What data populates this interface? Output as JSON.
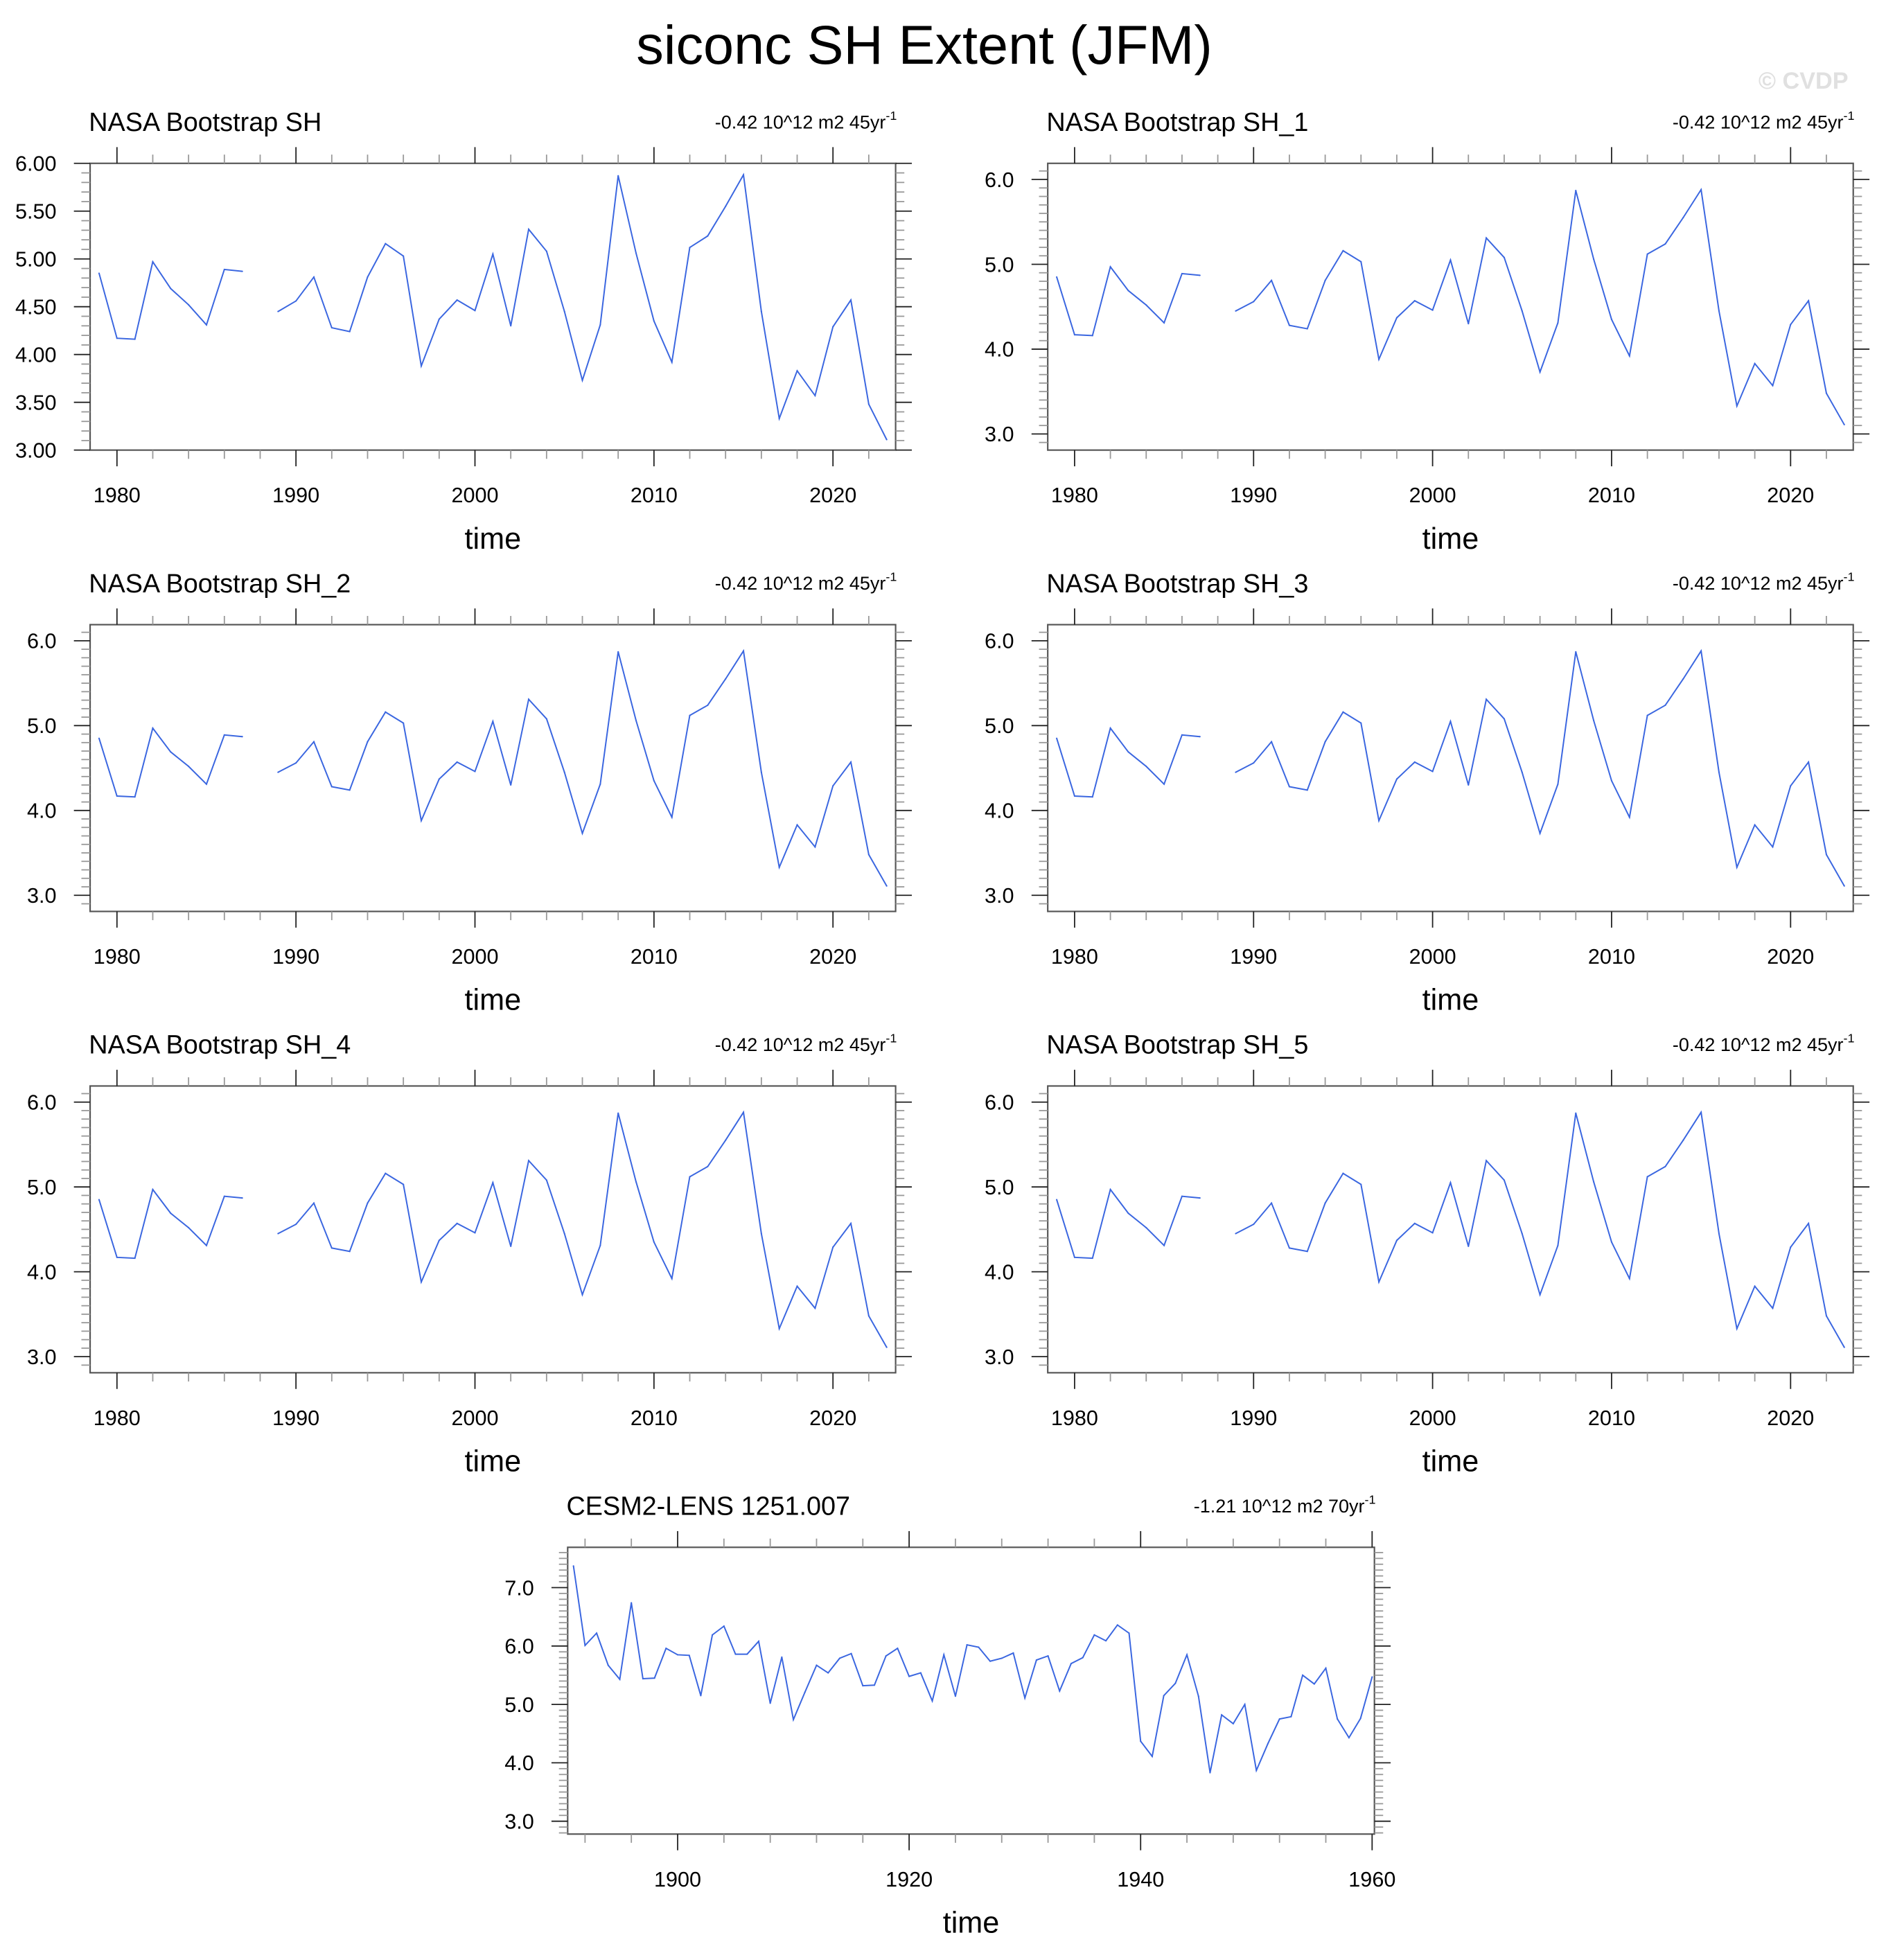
{
  "title": "siconc SH Extent (JFM)",
  "watermark": "© CVDP",
  "line_color": "#3a66e0",
  "chart_data": [
    {
      "type": "line",
      "title": "NASA Bootstrap SH",
      "trend": "-0.42 10^12 m2 45yr",
      "trend_exp": "-1",
      "xlabel": "time",
      "ylabel": "",
      "xlim": [
        1978.5,
        2023.5
      ],
      "ylim": [
        3.0,
        6.0
      ],
      "xticks": [
        1980,
        1990,
        2000,
        2010,
        2020
      ],
      "xtick_labels": [
        "1980",
        "1990",
        "2000",
        "2010",
        "2020"
      ],
      "yticks": [
        3.0,
        3.5,
        4.0,
        4.5,
        5.0,
        5.5,
        6.0
      ],
      "ytick_labels": [
        "3.00",
        "3.50",
        "4.00",
        "4.50",
        "5.00",
        "5.50",
        "6.00"
      ],
      "x": [
        1979,
        1980,
        1981,
        1982,
        1983,
        1984,
        1985,
        1986,
        1987,
        1988,
        1989,
        1990,
        1991,
        1992,
        1993,
        1994,
        1995,
        1996,
        1997,
        1998,
        1999,
        2000,
        2001,
        2002,
        2003,
        2004,
        2005,
        2006,
        2007,
        2008,
        2009,
        2010,
        2011,
        2012,
        2013,
        2014,
        2015,
        2016,
        2017,
        2018,
        2019,
        2020,
        2021,
        2022,
        2023
      ],
      "y": [
        4.85,
        4.17,
        4.16,
        4.97,
        4.69,
        4.52,
        4.31,
        4.89,
        4.87,
        null,
        4.45,
        4.56,
        4.81,
        4.28,
        4.24,
        4.81,
        5.16,
        5.03,
        3.88,
        4.37,
        4.57,
        4.46,
        5.05,
        4.3,
        5.31,
        5.08,
        4.45,
        3.73,
        4.31,
        5.87,
        5.06,
        4.35,
        3.92,
        5.12,
        5.24,
        5.55,
        5.88,
        4.45,
        3.33,
        3.83,
        3.57,
        4.29,
        4.57,
        3.48,
        3.11
      ]
    },
    {
      "type": "line",
      "title": "NASA Bootstrap SH_1",
      "trend": "-0.42 10^12 m2 45yr",
      "trend_exp": "-1",
      "xlabel": "time",
      "ylabel": "",
      "xlim": [
        1978.5,
        2023.5
      ],
      "ylim": [
        2.81,
        6.19
      ],
      "xticks": [
        1980,
        1990,
        2000,
        2010,
        2020
      ],
      "xtick_labels": [
        "1980",
        "1990",
        "2000",
        "2010",
        "2020"
      ],
      "yticks": [
        3.0,
        4.0,
        5.0,
        6.0
      ],
      "ytick_labels": [
        "3.0",
        "4.0",
        "5.0",
        "6.0"
      ],
      "x": [
        1979,
        1980,
        1981,
        1982,
        1983,
        1984,
        1985,
        1986,
        1987,
        1988,
        1989,
        1990,
        1991,
        1992,
        1993,
        1994,
        1995,
        1996,
        1997,
        1998,
        1999,
        2000,
        2001,
        2002,
        2003,
        2004,
        2005,
        2006,
        2007,
        2008,
        2009,
        2010,
        2011,
        2012,
        2013,
        2014,
        2015,
        2016,
        2017,
        2018,
        2019,
        2020,
        2021,
        2022,
        2023
      ],
      "y": [
        4.85,
        4.17,
        4.16,
        4.97,
        4.69,
        4.52,
        4.31,
        4.89,
        4.87,
        null,
        4.45,
        4.56,
        4.81,
        4.28,
        4.24,
        4.81,
        5.16,
        5.03,
        3.88,
        4.37,
        4.57,
        4.46,
        5.05,
        4.3,
        5.31,
        5.08,
        4.45,
        3.73,
        4.31,
        5.87,
        5.06,
        4.35,
        3.92,
        5.12,
        5.24,
        5.55,
        5.88,
        4.45,
        3.33,
        3.83,
        3.57,
        4.29,
        4.57,
        3.48,
        3.11
      ]
    },
    {
      "type": "line",
      "title": "NASA Bootstrap SH_2",
      "trend": "-0.42 10^12 m2 45yr",
      "trend_exp": "-1",
      "xlabel": "time",
      "ylabel": "",
      "xlim": [
        1978.5,
        2023.5
      ],
      "ylim": [
        2.81,
        6.19
      ],
      "xticks": [
        1980,
        1990,
        2000,
        2010,
        2020
      ],
      "xtick_labels": [
        "1980",
        "1990",
        "2000",
        "2010",
        "2020"
      ],
      "yticks": [
        3.0,
        4.0,
        5.0,
        6.0
      ],
      "ytick_labels": [
        "3.0",
        "4.0",
        "5.0",
        "6.0"
      ],
      "x": [
        1979,
        1980,
        1981,
        1982,
        1983,
        1984,
        1985,
        1986,
        1987,
        1988,
        1989,
        1990,
        1991,
        1992,
        1993,
        1994,
        1995,
        1996,
        1997,
        1998,
        1999,
        2000,
        2001,
        2002,
        2003,
        2004,
        2005,
        2006,
        2007,
        2008,
        2009,
        2010,
        2011,
        2012,
        2013,
        2014,
        2015,
        2016,
        2017,
        2018,
        2019,
        2020,
        2021,
        2022,
        2023
      ],
      "y": [
        4.85,
        4.17,
        4.16,
        4.97,
        4.69,
        4.52,
        4.31,
        4.89,
        4.87,
        null,
        4.45,
        4.56,
        4.81,
        4.28,
        4.24,
        4.81,
        5.16,
        5.03,
        3.88,
        4.37,
        4.57,
        4.46,
        5.05,
        4.3,
        5.31,
        5.08,
        4.45,
        3.73,
        4.31,
        5.87,
        5.06,
        4.35,
        3.92,
        5.12,
        5.24,
        5.55,
        5.88,
        4.45,
        3.33,
        3.83,
        3.57,
        4.29,
        4.57,
        3.48,
        3.11
      ]
    },
    {
      "type": "line",
      "title": "NASA Bootstrap SH_3",
      "trend": "-0.42 10^12 m2 45yr",
      "trend_exp": "-1",
      "xlabel": "time",
      "ylabel": "",
      "xlim": [
        1978.5,
        2023.5
      ],
      "ylim": [
        2.81,
        6.19
      ],
      "xticks": [
        1980,
        1990,
        2000,
        2010,
        2020
      ],
      "xtick_labels": [
        "1980",
        "1990",
        "2000",
        "2010",
        "2020"
      ],
      "yticks": [
        3.0,
        4.0,
        5.0,
        6.0
      ],
      "ytick_labels": [
        "3.0",
        "4.0",
        "5.0",
        "6.0"
      ],
      "x": [
        1979,
        1980,
        1981,
        1982,
        1983,
        1984,
        1985,
        1986,
        1987,
        1988,
        1989,
        1990,
        1991,
        1992,
        1993,
        1994,
        1995,
        1996,
        1997,
        1998,
        1999,
        2000,
        2001,
        2002,
        2003,
        2004,
        2005,
        2006,
        2007,
        2008,
        2009,
        2010,
        2011,
        2012,
        2013,
        2014,
        2015,
        2016,
        2017,
        2018,
        2019,
        2020,
        2021,
        2022,
        2023
      ],
      "y": [
        4.85,
        4.17,
        4.16,
        4.97,
        4.69,
        4.52,
        4.31,
        4.89,
        4.87,
        null,
        4.45,
        4.56,
        4.81,
        4.28,
        4.24,
        4.81,
        5.16,
        5.03,
        3.88,
        4.37,
        4.57,
        4.46,
        5.05,
        4.3,
        5.31,
        5.08,
        4.45,
        3.73,
        4.31,
        5.87,
        5.06,
        4.35,
        3.92,
        5.12,
        5.24,
        5.55,
        5.88,
        4.45,
        3.33,
        3.83,
        3.57,
        4.29,
        4.57,
        3.48,
        3.11
      ]
    },
    {
      "type": "line",
      "title": "NASA Bootstrap SH_4",
      "trend": "-0.42 10^12 m2 45yr",
      "trend_exp": "-1",
      "xlabel": "time",
      "ylabel": "",
      "xlim": [
        1978.5,
        2023.5
      ],
      "ylim": [
        2.81,
        6.19
      ],
      "xticks": [
        1980,
        1990,
        2000,
        2010,
        2020
      ],
      "xtick_labels": [
        "1980",
        "1990",
        "2000",
        "2010",
        "2020"
      ],
      "yticks": [
        3.0,
        4.0,
        5.0,
        6.0
      ],
      "ytick_labels": [
        "3.0",
        "4.0",
        "5.0",
        "6.0"
      ],
      "x": [
        1979,
        1980,
        1981,
        1982,
        1983,
        1984,
        1985,
        1986,
        1987,
        1988,
        1989,
        1990,
        1991,
        1992,
        1993,
        1994,
        1995,
        1996,
        1997,
        1998,
        1999,
        2000,
        2001,
        2002,
        2003,
        2004,
        2005,
        2006,
        2007,
        2008,
        2009,
        2010,
        2011,
        2012,
        2013,
        2014,
        2015,
        2016,
        2017,
        2018,
        2019,
        2020,
        2021,
        2022,
        2023
      ],
      "y": [
        4.85,
        4.17,
        4.16,
        4.97,
        4.69,
        4.52,
        4.31,
        4.89,
        4.87,
        null,
        4.45,
        4.56,
        4.81,
        4.28,
        4.24,
        4.81,
        5.16,
        5.03,
        3.88,
        4.37,
        4.57,
        4.46,
        5.05,
        4.3,
        5.31,
        5.08,
        4.45,
        3.73,
        4.31,
        5.87,
        5.06,
        4.35,
        3.92,
        5.12,
        5.24,
        5.55,
        5.88,
        4.45,
        3.33,
        3.83,
        3.57,
        4.29,
        4.57,
        3.48,
        3.11
      ]
    },
    {
      "type": "line",
      "title": "NASA Bootstrap SH_5",
      "trend": "-0.42 10^12 m2 45yr",
      "trend_exp": "-1",
      "xlabel": "time",
      "ylabel": "",
      "xlim": [
        1978.5,
        2023.5
      ],
      "ylim": [
        2.81,
        6.19
      ],
      "xticks": [
        1980,
        1990,
        2000,
        2010,
        2020
      ],
      "xtick_labels": [
        "1980",
        "1990",
        "2000",
        "2010",
        "2020"
      ],
      "yticks": [
        3.0,
        4.0,
        5.0,
        6.0
      ],
      "ytick_labels": [
        "3.0",
        "4.0",
        "5.0",
        "6.0"
      ],
      "x": [
        1979,
        1980,
        1981,
        1982,
        1983,
        1984,
        1985,
        1986,
        1987,
        1988,
        1989,
        1990,
        1991,
        1992,
        1993,
        1994,
        1995,
        1996,
        1997,
        1998,
        1999,
        2000,
        2001,
        2002,
        2003,
        2004,
        2005,
        2006,
        2007,
        2008,
        2009,
        2010,
        2011,
        2012,
        2013,
        2014,
        2015,
        2016,
        2017,
        2018,
        2019,
        2020,
        2021,
        2022,
        2023
      ],
      "y": [
        4.85,
        4.17,
        4.16,
        4.97,
        4.69,
        4.52,
        4.31,
        4.89,
        4.87,
        null,
        4.45,
        4.56,
        4.81,
        4.28,
        4.24,
        4.81,
        5.16,
        5.03,
        3.88,
        4.37,
        4.57,
        4.46,
        5.05,
        4.3,
        5.31,
        5.08,
        4.45,
        3.73,
        4.31,
        5.87,
        5.06,
        4.35,
        3.92,
        5.12,
        5.24,
        5.55,
        5.88,
        4.45,
        3.33,
        3.83,
        3.57,
        4.29,
        4.57,
        3.48,
        3.11
      ]
    },
    {
      "type": "line",
      "title": "CESM2-LENS 1251.007",
      "trend": "-1.21 10^12 m2 70yr",
      "trend_exp": "-1",
      "xlabel": "time",
      "ylabel": "",
      "xlim": [
        1890.5,
        1960.2
      ],
      "ylim": [
        2.78,
        7.69
      ],
      "xticks": [
        1900,
        1920,
        1940,
        1960
      ],
      "xtick_labels": [
        "1900",
        "1920",
        "1940",
        "1960"
      ],
      "yticks": [
        3.0,
        4.0,
        5.0,
        6.0,
        7.0
      ],
      "ytick_labels": [
        "3.0",
        "4.0",
        "5.0",
        "6.0",
        "7.0"
      ],
      "x": [
        1891,
        1892,
        1893,
        1894,
        1895,
        1896,
        1897,
        1898,
        1899,
        1900,
        1901,
        1902,
        1903,
        1904,
        1905,
        1906,
        1907,
        1908,
        1909,
        1910,
        1911,
        1912,
        1913,
        1914,
        1915,
        1916,
        1917,
        1918,
        1919,
        1920,
        1921,
        1922,
        1923,
        1924,
        1925,
        1926,
        1927,
        1928,
        1929,
        1930,
        1931,
        1932,
        1933,
        1934,
        1935,
        1936,
        1937,
        1938,
        1939,
        1940,
        1941,
        1942,
        1943,
        1944,
        1945,
        1946,
        1947,
        1948,
        1949,
        1950,
        1951,
        1952,
        1953,
        1954,
        1955,
        1956,
        1957,
        1958,
        1959,
        1960
      ],
      "y": [
        7.37,
        6.01,
        6.22,
        5.67,
        5.43,
        6.74,
        5.44,
        5.45,
        5.96,
        5.85,
        5.84,
        5.15,
        6.19,
        6.34,
        5.86,
        5.86,
        6.08,
        5.02,
        5.81,
        4.74,
        5.21,
        5.67,
        5.54,
        5.79,
        5.87,
        5.32,
        5.33,
        5.83,
        5.96,
        5.48,
        5.54,
        5.06,
        5.85,
        5.14,
        6.02,
        5.98,
        5.74,
        5.79,
        5.88,
        5.11,
        5.76,
        5.83,
        5.23,
        5.7,
        5.8,
        6.19,
        6.09,
        6.36,
        6.22,
        4.37,
        4.11,
        5.15,
        5.36,
        5.85,
        5.14,
        3.83,
        4.82,
        4.67,
        5.0,
        3.87,
        4.33,
        4.75,
        4.79,
        5.5,
        5.35,
        5.62,
        4.75,
        4.43,
        4.76,
        5.47
      ]
    }
  ]
}
